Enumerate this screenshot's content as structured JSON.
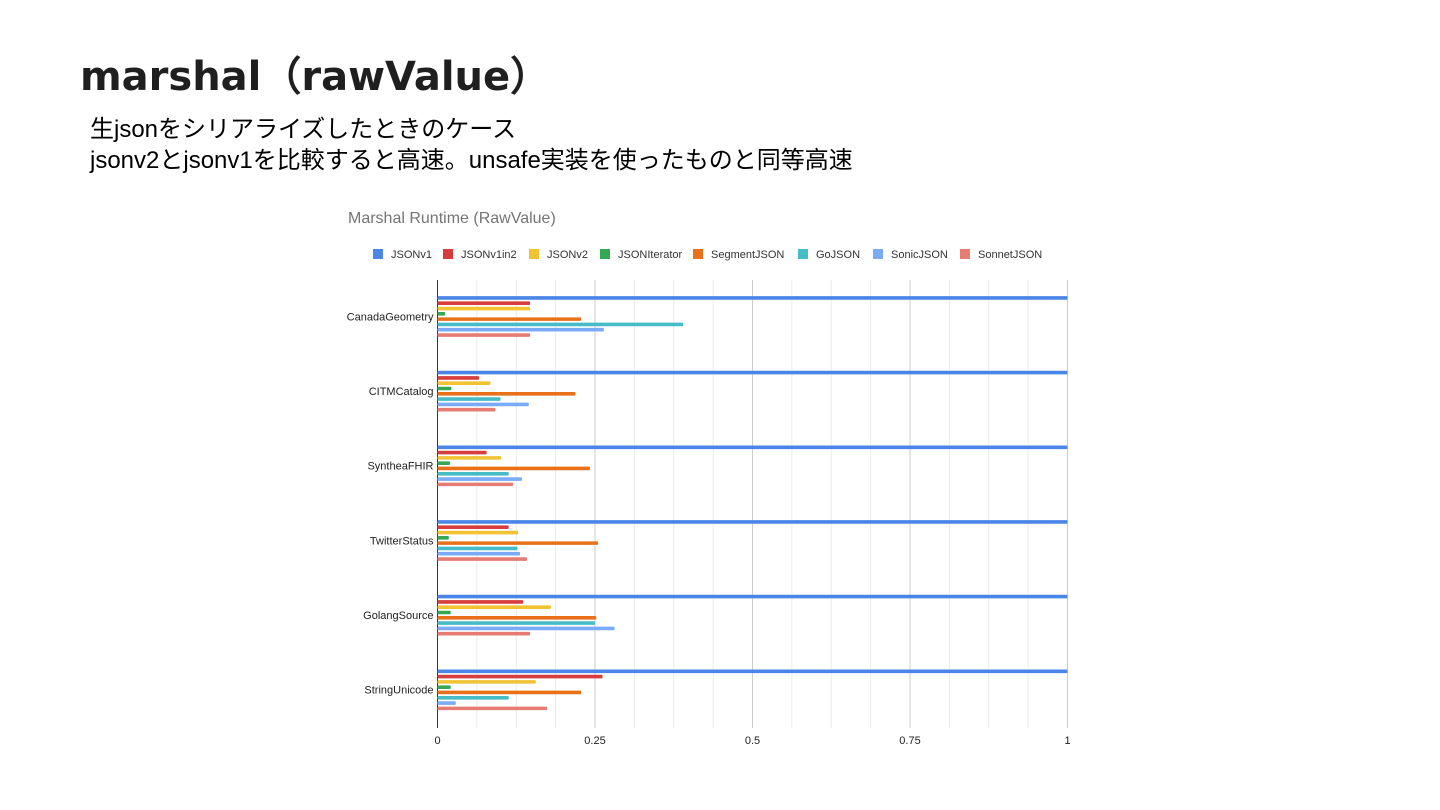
{
  "slide": {
    "title": "marshal（rawValue）",
    "lines": [
      "生jsonをシリアライズしたときのケース",
      "jsonv2とjsonv1を比較すると高速。unsafe実装を使ったものと同等高速"
    ]
  },
  "chart_data": {
    "type": "bar",
    "orientation": "horizontal",
    "title": "Marshal Runtime (RawValue)",
    "categories": [
      "CanadaGeometry",
      "CITMCatalog",
      "SyntheaFHIR",
      "TwitterStatus",
      "GolangSource",
      "StringUnicode"
    ],
    "series": [
      {
        "name": "JSONv1",
        "color": "#4a86e8",
        "values": [
          1,
          1,
          1,
          1,
          1,
          1
        ]
      },
      {
        "name": "JSONv1in2",
        "color": "#d83c3c",
        "values": [
          0.147,
          0.066,
          0.078,
          0.113,
          0.136,
          0.262
        ]
      },
      {
        "name": "JSONv2",
        "color": "#f1c232",
        "values": [
          0.147,
          0.084,
          0.101,
          0.128,
          0.18,
          0.156
        ]
      },
      {
        "name": "JSONIterator",
        "color": "#34a853",
        "values": [
          0.012,
          0.022,
          0.02,
          0.018,
          0.021,
          0.021
        ]
      },
      {
        "name": "SegmentJSON",
        "color": "#e8711a",
        "values": [
          0.228,
          0.219,
          0.242,
          0.255,
          0.252,
          0.228
        ]
      },
      {
        "name": "GoJSON",
        "color": "#46bdc6",
        "values": [
          0.39,
          0.1,
          0.113,
          0.127,
          0.25,
          0.113
        ]
      },
      {
        "name": "SonicJSON",
        "color": "#7baaf7",
        "values": [
          0.264,
          0.145,
          0.134,
          0.131,
          0.281,
          0.029
        ]
      },
      {
        "name": "SonnetJSON",
        "color": "#e67c73",
        "values": [
          0.147,
          0.092,
          0.12,
          0.142,
          0.147,
          0.174
        ]
      }
    ],
    "xlim": [
      0,
      1
    ],
    "xticks": [
      "0",
      "0.25",
      "0.5",
      "0.75",
      "1"
    ],
    "grid": true,
    "legend": "top"
  }
}
